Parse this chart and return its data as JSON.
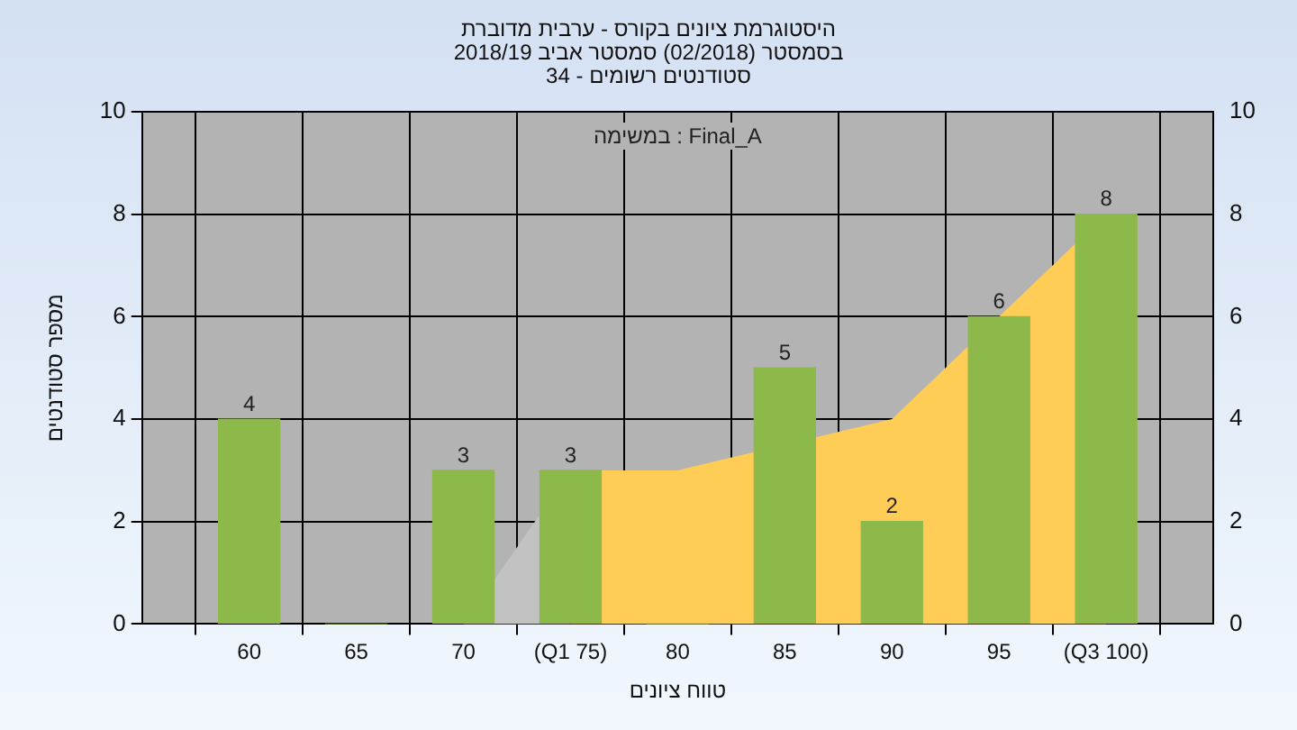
{
  "chart_data": {
    "type": "bar",
    "title": "היסטוגרמת ציונים בקורס - ערבית מדוברת",
    "subtitle": "בסמסטר  (02/2018)  סמסטר אביב 2018/19\nסטודנטים רשומים - 34",
    "xlabel": "טווח ציונים",
    "ylabel": "מספר סטודנטים",
    "annotations": [
      "במשימה : Final_A"
    ],
    "x": [
      60,
      65,
      70,
      75,
      80,
      85,
      90,
      95,
      100
    ],
    "xlim": [
      55,
      105
    ],
    "xticks": [
      {
        "value": 55,
        "label": null
      },
      60,
      65,
      70,
      {
        "value": 75,
        "label": "(Q1 75)"
      },
      80,
      85,
      90,
      95,
      {
        "value": 100,
        "label": "(Q3 100)"
      },
      {
        "value": 105,
        "label": null
      }
    ],
    "ylim": [
      0,
      10
    ],
    "yticks": [
      0,
      2,
      4,
      6,
      8,
      10
    ],
    "y2lim": [
      0,
      10
    ],
    "y2ticks": [
      0,
      2,
      4,
      6,
      8,
      10
    ],
    "series": [
      {
        "type": "area",
        "color": "#c2c2c2",
        "x": [
          70,
          75
        ],
        "values": [
          0,
          3
        ]
      },
      {
        "type": "area",
        "color": "#ffcc55",
        "x": [
          75,
          80,
          85,
          90,
          95,
          100
        ],
        "values": [
          3,
          3,
          null,
          4,
          null,
          8
        ]
      },
      {
        "color": "#8db84a",
        "values": [
          4,
          0,
          3,
          3,
          0,
          5,
          2,
          6,
          8
        ],
        "value_labels": [
          "4",
          null,
          "3",
          "3",
          null,
          "5",
          "2",
          "6",
          "8"
        ]
      }
    ],
    "grid": true,
    "legend": false
  }
}
